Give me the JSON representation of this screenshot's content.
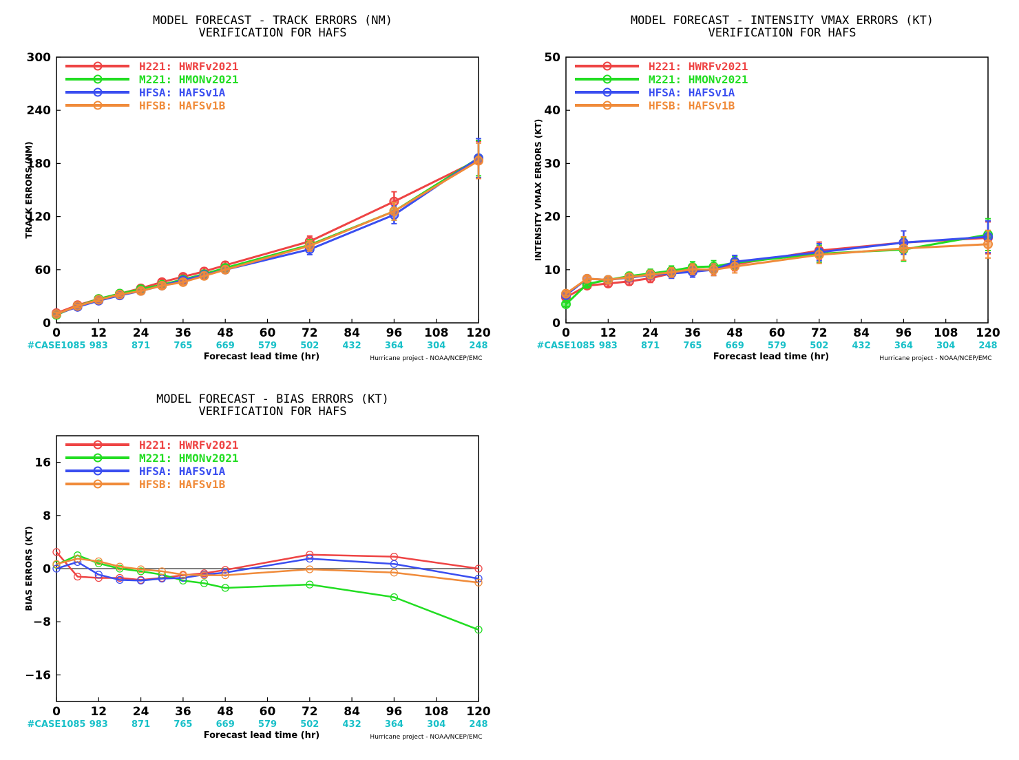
{
  "charts": [
    {
      "id": "track",
      "title1": "MODEL FORECAST - TRACK ERRORS (NM)",
      "title2": "VERIFICATION FOR HAFS",
      "ylabel": "TRACK ERRORS (NM)",
      "xlabel": "Forecast lead time (hr)",
      "credit": "Hurricane project - NOAA/NCEP/EMC",
      "case_prefix": "#CASE",
      "case_counts": [
        "1085",
        "983",
        "871",
        "765",
        "669",
        "579",
        "502",
        "432",
        "364",
        "304",
        "248"
      ]
    },
    {
      "id": "intensity",
      "title1": "MODEL FORECAST - INTENSITY VMAX ERRORS (KT)",
      "title2": "VERIFICATION FOR HAFS",
      "ylabel": "INTENSITY VMAX ERRORS (KT)",
      "xlabel": "Forecast lead time (hr)",
      "credit": "Hurricane project - NOAA/NCEP/EMC",
      "case_prefix": "#CASE",
      "case_counts": [
        "1085",
        "983",
        "871",
        "765",
        "669",
        "579",
        "502",
        "432",
        "364",
        "304",
        "248"
      ]
    },
    {
      "id": "bias",
      "title1": "MODEL FORECAST - BIAS ERRORS (KT)",
      "title2": "VERIFICATION FOR HAFS",
      "ylabel": "BIAS ERRORS (KT)",
      "xlabel": "Forecast lead time (hr)",
      "credit": "Hurricane project - NOAA/NCEP/EMC",
      "case_prefix": "#CASE",
      "case_counts": [
        "1085",
        "983",
        "871",
        "765",
        "669",
        "579",
        "502",
        "432",
        "364",
        "304",
        "248"
      ]
    }
  ],
  "legend": [
    {
      "code": "H221:",
      "label": "HWRFv2021",
      "color": "#ee4444"
    },
    {
      "code": "M221:",
      "label": "HMONv2021",
      "color": "#22dd22"
    },
    {
      "code": "HFSA:",
      "label": "HAFSv1A",
      "color": "#3a4ef0"
    },
    {
      "code": "HFSB:",
      "label": "HAFSv1B",
      "color": "#f08b3a"
    }
  ],
  "chart_data": [
    {
      "type": "line",
      "title": "MODEL FORECAST - TRACK ERRORS (NM)",
      "subtitle": "VERIFICATION FOR HAFS",
      "xlabel": "Forecast lead time (hr)",
      "ylabel": "TRACK ERRORS (NM)",
      "xlim": [
        0,
        120
      ],
      "ylim": [
        0,
        300
      ],
      "xticks": [
        0,
        12,
        24,
        36,
        48,
        60,
        72,
        84,
        96,
        108,
        120
      ],
      "yticks": [
        0,
        60,
        120,
        180,
        240,
        300
      ],
      "grid": false,
      "legend": "top-left",
      "error_bars": true,
      "markers": "filled-circle",
      "series": [
        {
          "name": "H221: HWRFv2021",
          "color": "#ee4444",
          "x": [
            0,
            6,
            12,
            18,
            24,
            30,
            36,
            42,
            48,
            72,
            96,
            120
          ],
          "y": [
            11,
            20,
            27,
            33,
            39,
            46,
            52,
            58,
            65,
            92,
            137,
            184
          ],
          "err": [
            2,
            2,
            2,
            2,
            3,
            3,
            3,
            4,
            4,
            6,
            11,
            21
          ]
        },
        {
          "name": "M221: HMONv2021",
          "color": "#22dd22",
          "x": [
            0,
            6,
            12,
            18,
            24,
            30,
            36,
            42,
            48,
            72,
            96,
            120
          ],
          "y": [
            9,
            19,
            27,
            33,
            38,
            43,
            49,
            55,
            62,
            88,
            126,
            186
          ],
          "err": [
            2,
            2,
            2,
            2,
            3,
            3,
            3,
            4,
            4,
            6,
            10,
            20
          ]
        },
        {
          "name": "HFSA: HAFSv1A",
          "color": "#3a4ef0",
          "x": [
            0,
            6,
            12,
            18,
            24,
            30,
            36,
            42,
            48,
            72,
            96,
            120
          ],
          "y": [
            10,
            18,
            25,
            31,
            36,
            42,
            48,
            54,
            60,
            83,
            122,
            186
          ],
          "err": [
            2,
            2,
            2,
            2,
            3,
            3,
            3,
            4,
            4,
            6,
            10,
            22
          ]
        },
        {
          "name": "HFSB: HAFSv1B",
          "color": "#f08b3a",
          "x": [
            0,
            6,
            12,
            18,
            24,
            30,
            36,
            42,
            48,
            72,
            96,
            120
          ],
          "y": [
            10,
            19,
            26,
            32,
            36,
            42,
            46,
            53,
            60,
            87,
            126,
            183
          ],
          "err": [
            2,
            2,
            2,
            2,
            3,
            3,
            3,
            4,
            4,
            6,
            10,
            20
          ]
        }
      ]
    },
    {
      "type": "line",
      "title": "MODEL FORECAST - INTENSITY VMAX ERRORS (KT)",
      "subtitle": "VERIFICATION FOR HAFS",
      "xlabel": "Forecast lead time (hr)",
      "ylabel": "INTENSITY VMAX ERRORS (KT)",
      "xlim": [
        0,
        120
      ],
      "ylim": [
        0,
        50
      ],
      "xticks": [
        0,
        12,
        24,
        36,
        48,
        60,
        72,
        84,
        96,
        108,
        120
      ],
      "yticks": [
        0,
        10,
        20,
        30,
        40,
        50
      ],
      "grid": false,
      "legend": "top-left",
      "error_bars": true,
      "markers": "filled-circle",
      "series": [
        {
          "name": "H221: HWRFv2021",
          "color": "#ee4444",
          "x": [
            0,
            6,
            12,
            18,
            24,
            30,
            36,
            42,
            48,
            72,
            96,
            120
          ],
          "y": [
            4.8,
            7.0,
            7.4,
            7.8,
            8.4,
            9.3,
            9.9,
            10.1,
            11.0,
            13.6,
            15.1,
            16.0
          ],
          "err": [
            0.4,
            0.5,
            0.6,
            0.7,
            0.8,
            0.9,
            1.0,
            1.1,
            1.2,
            1.6,
            2.2,
            3.0
          ]
        },
        {
          "name": "M221: HMONv2021",
          "color": "#22dd22",
          "x": [
            0,
            6,
            12,
            18,
            24,
            30,
            36,
            42,
            48,
            72,
            96,
            120
          ],
          "y": [
            3.5,
            7.3,
            8.1,
            8.8,
            9.3,
            9.8,
            10.5,
            10.6,
            11.3,
            13.0,
            13.8,
            16.6
          ],
          "err": [
            0.4,
            0.5,
            0.6,
            0.7,
            0.8,
            0.9,
            1.0,
            1.1,
            1.2,
            1.6,
            2.2,
            3.0
          ]
        },
        {
          "name": "HFSA: HAFSv1A",
          "color": "#3a4ef0",
          "x": [
            0,
            6,
            12,
            18,
            24,
            30,
            36,
            42,
            48,
            72,
            96,
            120
          ],
          "y": [
            5.2,
            8.3,
            8.1,
            8.5,
            9.0,
            9.3,
            9.6,
            10.0,
            11.5,
            13.3,
            15.1,
            16.2
          ],
          "err": [
            0.4,
            0.5,
            0.6,
            0.7,
            0.8,
            0.9,
            1.0,
            1.1,
            1.2,
            1.6,
            2.2,
            3.0
          ]
        },
        {
          "name": "HFSB: HAFSv1B",
          "color": "#f08b3a",
          "x": [
            0,
            6,
            12,
            18,
            24,
            30,
            36,
            42,
            48,
            72,
            96,
            120
          ],
          "y": [
            5.5,
            8.3,
            8.1,
            8.6,
            9.1,
            9.5,
            10.1,
            10.0,
            10.6,
            12.8,
            14.0,
            14.8
          ],
          "err": [
            0.4,
            0.5,
            0.6,
            0.7,
            0.8,
            0.9,
            1.0,
            1.1,
            1.2,
            1.6,
            2.2,
            2.6
          ]
        }
      ]
    },
    {
      "type": "line",
      "title": "MODEL FORECAST - BIAS ERRORS (KT)",
      "subtitle": "VERIFICATION FOR HAFS",
      "xlabel": "Forecast lead time (hr)",
      "ylabel": "BIAS ERRORS (KT)",
      "xlim": [
        0,
        120
      ],
      "ylim": [
        -20,
        20
      ],
      "xticks": [
        0,
        12,
        24,
        36,
        48,
        60,
        72,
        84,
        96,
        108,
        120
      ],
      "yticks": [
        -16,
        -8,
        0,
        8,
        16
      ],
      "zero_line": true,
      "grid": false,
      "legend": "top-left",
      "error_bars": false,
      "markers": "open-circle",
      "series": [
        {
          "name": "H221: HWRFv2021",
          "color": "#ee4444",
          "x": [
            0,
            6,
            12,
            18,
            24,
            30,
            36,
            42,
            48,
            72,
            96,
            120
          ],
          "y": [
            2.5,
            -1.2,
            -1.4,
            -1.4,
            -1.7,
            -1.4,
            -1.0,
            -0.7,
            -0.2,
            2.1,
            1.8,
            0.0
          ]
        },
        {
          "name": "M221: HMONv2021",
          "color": "#22dd22",
          "x": [
            0,
            6,
            12,
            18,
            24,
            30,
            36,
            42,
            48,
            72,
            96,
            120
          ],
          "y": [
            0.6,
            2.0,
            0.8,
            0.0,
            -0.4,
            -0.9,
            -1.8,
            -2.2,
            -2.9,
            -2.4,
            -4.3,
            -9.2
          ]
        },
        {
          "name": "HFSA: HAFSv1A",
          "color": "#3a4ef0",
          "x": [
            0,
            6,
            12,
            18,
            24,
            30,
            36,
            42,
            48,
            72,
            96,
            120
          ],
          "y": [
            0.0,
            1.0,
            -0.9,
            -1.7,
            -1.8,
            -1.5,
            -1.4,
            -0.9,
            -0.6,
            1.5,
            0.7,
            -1.5
          ]
        },
        {
          "name": "HFSB: HAFSv1B",
          "color": "#f08b3a",
          "x": [
            0,
            6,
            12,
            18,
            24,
            30,
            36,
            42,
            48,
            72,
            96,
            120
          ],
          "y": [
            0.7,
            1.5,
            1.1,
            0.3,
            -0.1,
            -0.4,
            -0.9,
            -1.0,
            -1.0,
            -0.1,
            -0.6,
            -2.1
          ]
        }
      ]
    }
  ]
}
